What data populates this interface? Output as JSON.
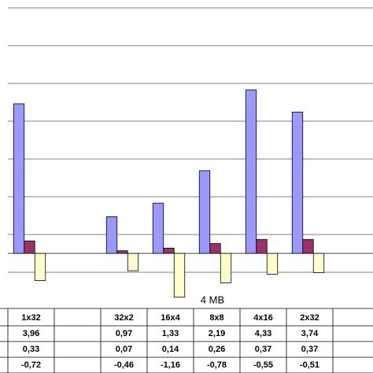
{
  "chart_data": {
    "type": "bar",
    "x_group_label": "4 MB",
    "categories": [
      "1x32",
      null,
      "32x2",
      "16x4",
      "8x8",
      "4x16",
      "2x32"
    ],
    "series": [
      {
        "color": "#9999ff",
        "values": [
          3.96,
          null,
          0.97,
          1.33,
          2.19,
          4.33,
          3.74
        ],
        "value_labels": [
          "3,96",
          null,
          "0,97",
          "1,33",
          "2,19",
          "4,33",
          "3,74"
        ]
      },
      {
        "color": "#993366",
        "values": [
          0.33,
          null,
          0.07,
          0.14,
          0.26,
          0.37,
          0.37
        ],
        "value_labels": [
          "0,33",
          null,
          "0,07",
          "0,14",
          "0,26",
          "0,37",
          "0,37"
        ]
      },
      {
        "color": "#ffffcc",
        "values": [
          -0.72,
          null,
          -0.46,
          -1.16,
          -0.78,
          -0.55,
          -0.51
        ],
        "value_labels": [
          "-0,72",
          null,
          "-0,46",
          "-1,16",
          "-0,78",
          "-0,55",
          "-0,51"
        ]
      }
    ],
    "ylim": [
      -1.5,
      6.7
    ],
    "yticks": [
      -0.5,
      0.5,
      1.5,
      2.5,
      3.5,
      4.5,
      5.5,
      6.5
    ],
    "grid": true
  }
}
